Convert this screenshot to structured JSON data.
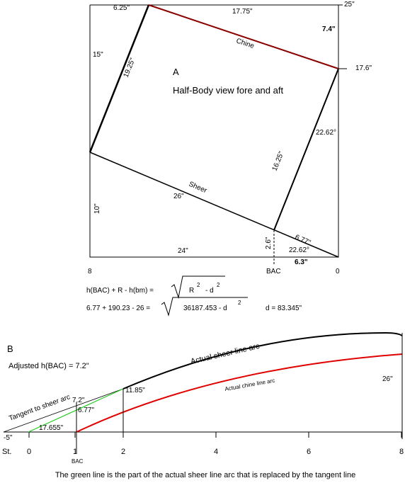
{
  "diagram_a": {
    "top_left_dim": "6.25\"",
    "top_dim": "17.75\"",
    "corner_top": "25\"",
    "rise": "7.4\"",
    "chine_label": "Chine",
    "right_dim": "17.6\"",
    "left_upper_dim": "15\"",
    "diag_left": "19.25\"",
    "letter": "A",
    "title": "Half-Body view fore and aft",
    "angle_upper": "22.62°",
    "diag_right": "16.25\"",
    "sheer_label": "Sheer",
    "sheer_len": "26\"",
    "left_lower_dim": "10\"",
    "bac_height": "2.6\"",
    "seg_len": "6.77\"",
    "bottom_dim": "24\"",
    "angle_lower": "22.62°",
    "drop": "6.3\"",
    "st_8": "8",
    "bac": "BAC",
    "st_0": "0"
  },
  "formulas": {
    "line1_lhs": "h(BAC) + R - h(bm) =",
    "line1_r": "R",
    "line1_sup1": "2",
    "line1_d": "-  d",
    "line1_sup2": "2",
    "line2_lhs": "6.77 + 190.23 - 26 =",
    "line2_rad": "36187.453 - d",
    "line2_sup": "2",
    "line2_result": "d = 83.345\""
  },
  "diagram_b": {
    "letter": "B",
    "adjusted": "Adjusted h(BAC) = 7.2\"",
    "tangent_label": "Tangent to sheer arc",
    "h72": "7.2\"",
    "h677": "6.77\"",
    "h1185": "11.85\"",
    "h17655": "17.655\"",
    "minus5": "-5\"",
    "sheer_arc": "Actual sheer line arc",
    "chine_arc": "Actual chine line arc",
    "h26": "26\"",
    "st": "St.",
    "ticks": [
      "0",
      "1",
      "2",
      "4",
      "6",
      "8"
    ],
    "bac": "BAC"
  },
  "caption": "The green line is the part of the actual sheer line arc that is replaced by the tangent line"
}
